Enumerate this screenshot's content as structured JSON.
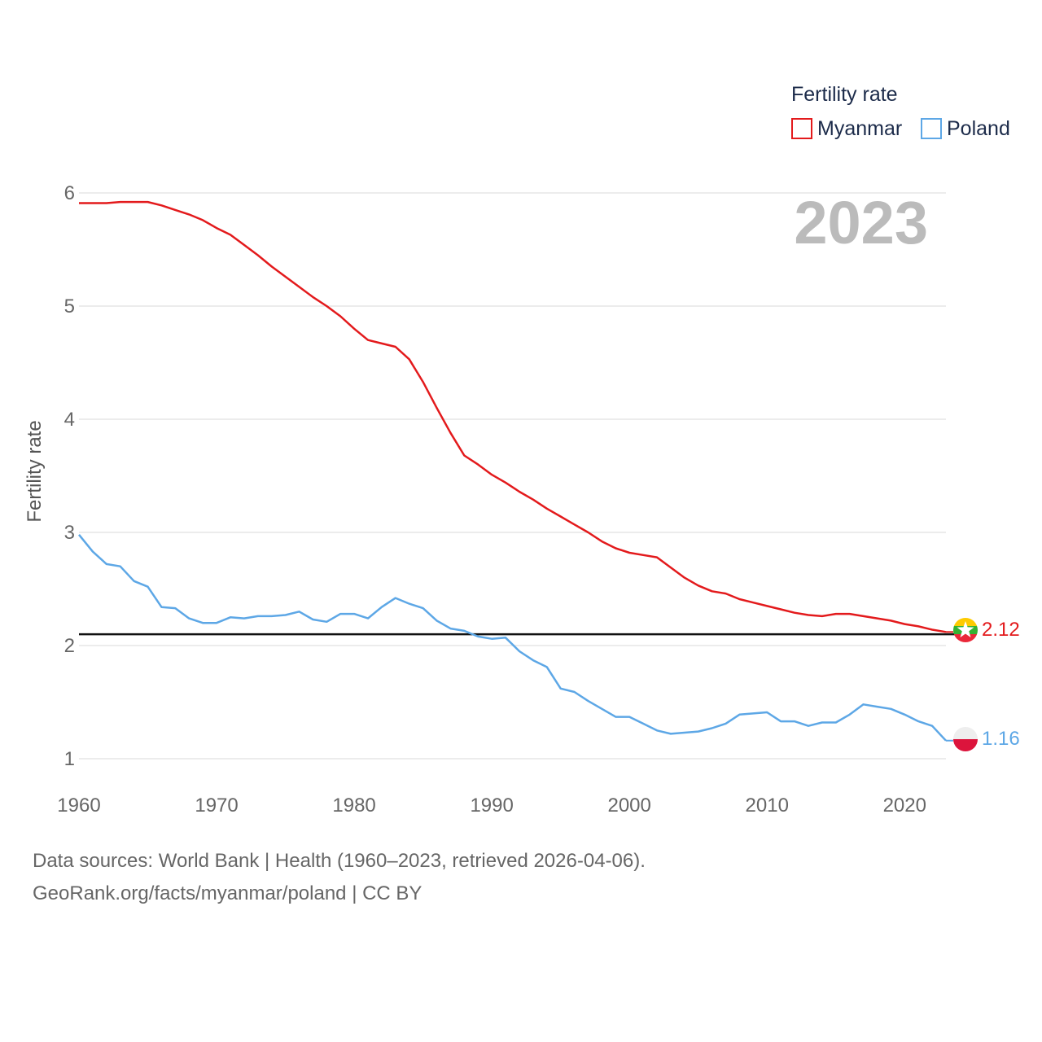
{
  "chart_data": {
    "type": "line",
    "current_year": "2023",
    "ylabel": "Fertility rate",
    "xlabel": "",
    "xlim": [
      1960,
      2023
    ],
    "ylim": [
      1,
      6
    ],
    "x_ticks": [
      1960,
      1970,
      1980,
      1990,
      2000,
      2010,
      2020
    ],
    "y_ticks": [
      1,
      2,
      3,
      4,
      5,
      6
    ],
    "reference_line": 2.1,
    "legend": {
      "title": "Fertility rate",
      "position": "top-right"
    },
    "x": [
      1960,
      1961,
      1962,
      1963,
      1964,
      1965,
      1966,
      1967,
      1968,
      1969,
      1970,
      1971,
      1972,
      1973,
      1974,
      1975,
      1976,
      1977,
      1978,
      1979,
      1980,
      1981,
      1982,
      1983,
      1984,
      1985,
      1986,
      1987,
      1988,
      1989,
      1990,
      1991,
      1992,
      1993,
      1994,
      1995,
      1996,
      1997,
      1998,
      1999,
      2000,
      2001,
      2002,
      2003,
      2004,
      2005,
      2006,
      2007,
      2008,
      2009,
      2010,
      2011,
      2012,
      2013,
      2014,
      2015,
      2016,
      2017,
      2018,
      2019,
      2020,
      2021,
      2022,
      2023
    ],
    "series": [
      {
        "name": "Myanmar",
        "color": "#e31a1c",
        "end_label": "2.12",
        "values": [
          5.91,
          5.91,
          5.91,
          5.92,
          5.92,
          5.92,
          5.89,
          5.85,
          5.81,
          5.76,
          5.69,
          5.63,
          5.54,
          5.45,
          5.35,
          5.26,
          5.17,
          5.08,
          5.0,
          4.91,
          4.8,
          4.7,
          4.67,
          4.64,
          4.53,
          4.33,
          4.1,
          3.88,
          3.68,
          3.6,
          3.51,
          3.44,
          3.36,
          3.29,
          3.21,
          3.14,
          3.07,
          3.0,
          2.92,
          2.86,
          2.82,
          2.8,
          2.78,
          2.69,
          2.6,
          2.53,
          2.48,
          2.46,
          2.41,
          2.38,
          2.35,
          2.32,
          2.29,
          2.27,
          2.26,
          2.28,
          2.28,
          2.26,
          2.24,
          2.22,
          2.19,
          2.17,
          2.14,
          2.12
        ]
      },
      {
        "name": "Poland",
        "color": "#5da7e6",
        "end_label": "1.16",
        "values": [
          2.98,
          2.83,
          2.72,
          2.7,
          2.57,
          2.52,
          2.34,
          2.33,
          2.24,
          2.2,
          2.2,
          2.25,
          2.24,
          2.26,
          2.26,
          2.27,
          2.3,
          2.23,
          2.21,
          2.28,
          2.28,
          2.24,
          2.34,
          2.42,
          2.37,
          2.33,
          2.22,
          2.15,
          2.13,
          2.08,
          2.06,
          2.07,
          1.95,
          1.87,
          1.81,
          1.62,
          1.59,
          1.51,
          1.44,
          1.37,
          1.37,
          1.31,
          1.25,
          1.22,
          1.23,
          1.24,
          1.27,
          1.31,
          1.39,
          1.4,
          1.41,
          1.33,
          1.33,
          1.29,
          1.32,
          1.32,
          1.39,
          1.48,
          1.46,
          1.44,
          1.39,
          1.33,
          1.29,
          1.16
        ]
      }
    ]
  },
  "source": {
    "line1": "Data sources: World Bank | Health (1960–2023, retrieved 2026-04-06).",
    "line2": "GeoRank.org/facts/myanmar/poland | CC BY"
  }
}
